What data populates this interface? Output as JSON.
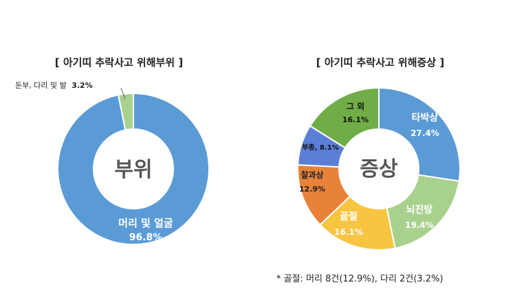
{
  "chart_data": [
    {
      "type": "pie",
      "title": "[ 아기띠 추락사고 위해부위 ]",
      "center_label": "부위",
      "categories": [
        "머리 및 얼굴",
        "둔부, 다리 및 발"
      ],
      "values": [
        96.8,
        3.2
      ],
      "value_labels": [
        "96.8%",
        "3.2%"
      ],
      "colors": [
        "#5b9bd5",
        "#a9d18e"
      ]
    },
    {
      "type": "pie",
      "title": "[ 아기띠 추락사고 위해증상 ]",
      "center_label": "증상",
      "categories": [
        "타박상",
        "뇌진탕",
        "골절",
        "찰과상",
        "부종",
        "그 외"
      ],
      "values": [
        27.4,
        19.4,
        16.1,
        12.9,
        8.1,
        16.1
      ],
      "value_labels": [
        "27.4%",
        "19.4%",
        "16.1%",
        "12.9%",
        "8.1%",
        "16.1%"
      ],
      "colors": [
        "#5b9bd5",
        "#a9d18e",
        "#f7c542",
        "#e8823b",
        "#5b7fd6",
        "#70ad47"
      ],
      "footnote": "* 골절: 머리 8건(12.9%), 다리 2건(3.2%)"
    }
  ]
}
